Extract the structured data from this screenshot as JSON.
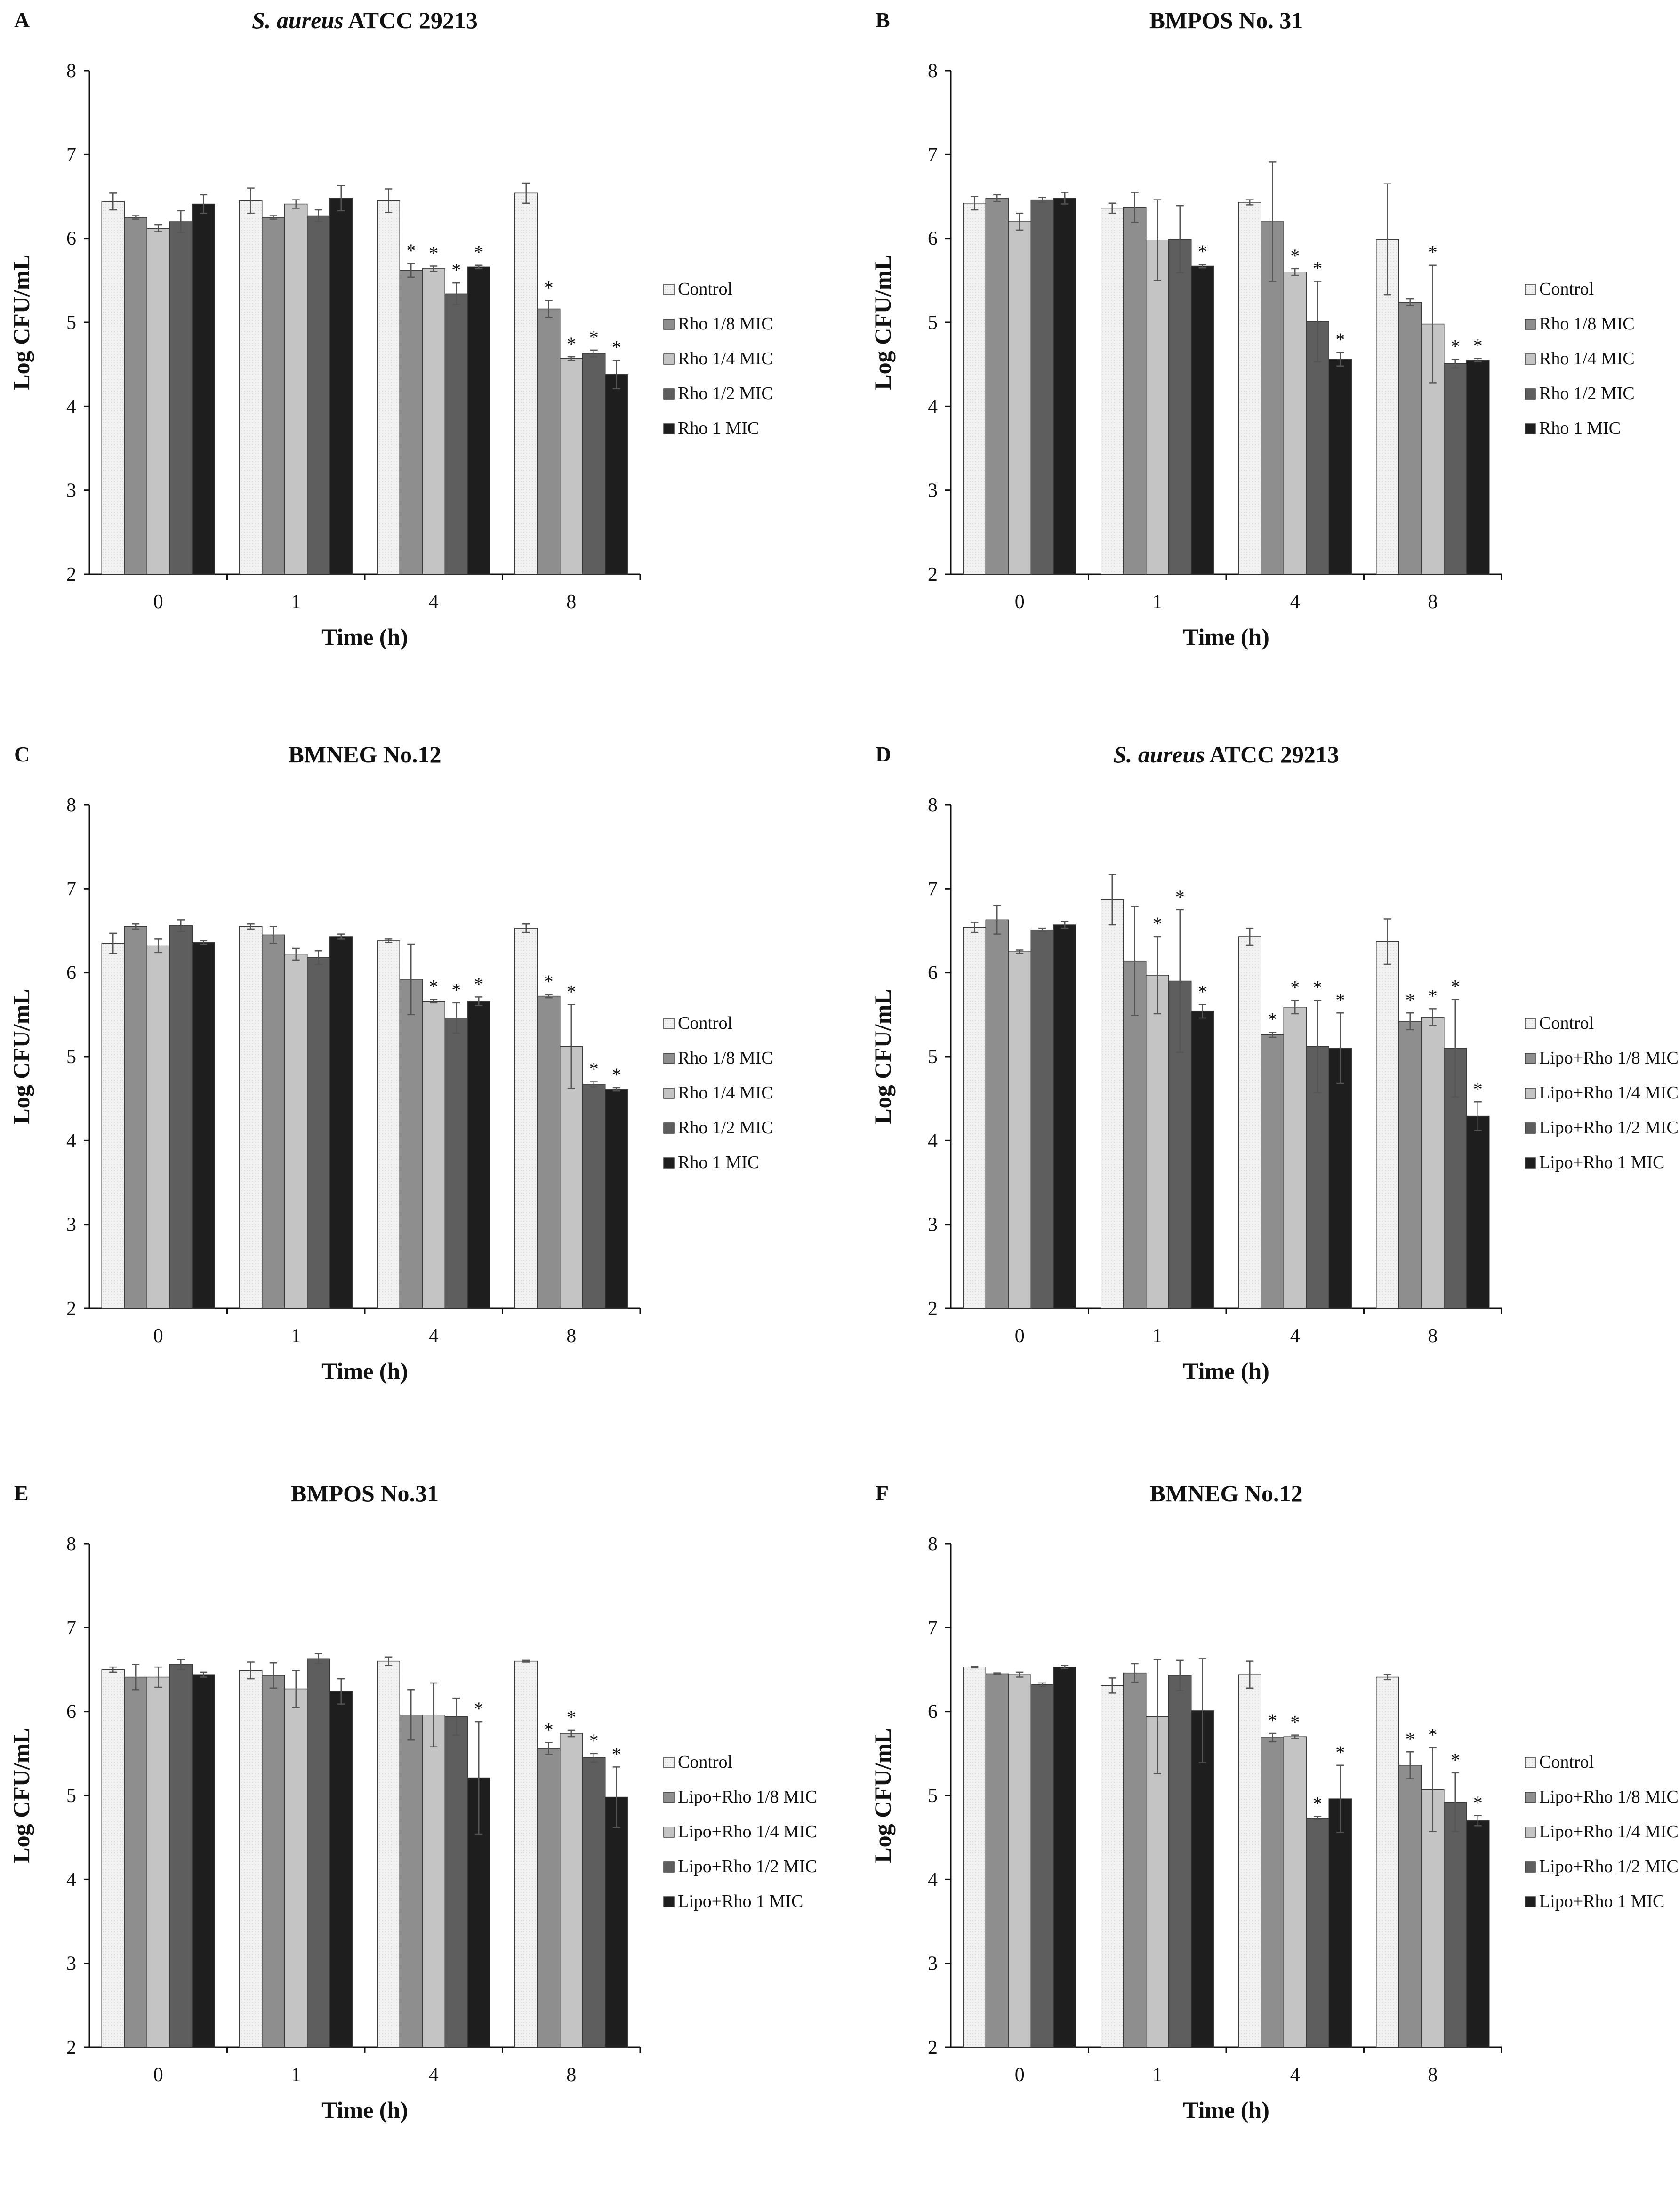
{
  "colors": {
    "control": "#efefef",
    "d18": "#8e8e8e",
    "d14": "#c4c4c4",
    "d12": "#5e5e5e",
    "d1": "#1e1e1e",
    "axis": "#111111",
    "errorbar": "#555555"
  },
  "chart_data": [
    {
      "letter": "A",
      "title_italic": "S. aureus",
      "title_rest": " ATCC 29213",
      "type": "bar",
      "xlabel": "Time (h)",
      "ylabel": "Log CFU/mL",
      "ylim": [
        2,
        8
      ],
      "yticks": [
        "2",
        "3",
        "4",
        "5",
        "6",
        "7",
        "8"
      ],
      "categories": [
        "0",
        "1",
        "4",
        "8"
      ],
      "series": [
        {
          "name": "Control",
          "values": [
            6.44,
            6.45,
            6.45,
            6.54
          ],
          "errors": [
            0.1,
            0.15,
            0.14,
            0.12
          ],
          "stars": [
            false,
            false,
            false,
            false
          ]
        },
        {
          "name": "Rho 1/8 MIC",
          "values": [
            6.25,
            6.25,
            5.62,
            5.16
          ],
          "errors": [
            0.02,
            0.02,
            0.08,
            0.1
          ],
          "stars": [
            false,
            false,
            true,
            true
          ]
        },
        {
          "name": "Rho 1/4 MIC",
          "values": [
            6.12,
            6.41,
            5.64,
            4.57
          ],
          "errors": [
            0.04,
            0.05,
            0.03,
            0.02
          ],
          "stars": [
            false,
            false,
            true,
            true
          ]
        },
        {
          "name": "Rho 1/2 MIC",
          "values": [
            6.2,
            6.27,
            5.34,
            4.63
          ],
          "errors": [
            0.13,
            0.07,
            0.13,
            0.04
          ],
          "stars": [
            false,
            false,
            true,
            true
          ]
        },
        {
          "name": "Rho 1 MIC",
          "values": [
            6.41,
            6.48,
            5.66,
            4.38
          ],
          "errors": [
            0.11,
            0.15,
            0.02,
            0.17
          ],
          "stars": [
            false,
            false,
            true,
            true
          ]
        }
      ]
    },
    {
      "letter": "B",
      "title_italic": "",
      "title_rest": "BMPOS No. 31",
      "type": "bar",
      "xlabel": "Time (h)",
      "ylabel": "Log CFU/mL",
      "ylim": [
        2,
        8
      ],
      "yticks": [
        "2",
        "3",
        "4",
        "5",
        "6",
        "7",
        "8"
      ],
      "categories": [
        "0",
        "1",
        "4",
        "8"
      ],
      "series": [
        {
          "name": "Control",
          "values": [
            6.42,
            6.36,
            6.43,
            5.99
          ],
          "errors": [
            0.08,
            0.06,
            0.03,
            0.66
          ],
          "stars": [
            false,
            false,
            false,
            false
          ]
        },
        {
          "name": "Rho 1/8 MIC",
          "values": [
            6.48,
            6.37,
            6.2,
            5.24
          ],
          "errors": [
            0.04,
            0.18,
            0.71,
            0.04
          ],
          "stars": [
            false,
            false,
            false,
            false
          ]
        },
        {
          "name": "Rho 1/4 MIC",
          "values": [
            6.2,
            5.98,
            5.6,
            4.98
          ],
          "errors": [
            0.1,
            0.48,
            0.04,
            0.7
          ],
          "stars": [
            false,
            false,
            true,
            true
          ]
        },
        {
          "name": "Rho 1/2 MIC",
          "values": [
            6.46,
            5.99,
            5.01,
            4.51
          ],
          "errors": [
            0.03,
            0.4,
            0.48,
            0.05
          ],
          "stars": [
            false,
            false,
            true,
            true
          ]
        },
        {
          "name": "Rho 1 MIC",
          "values": [
            6.48,
            5.67,
            4.56,
            4.55
          ],
          "errors": [
            0.07,
            0.02,
            0.08,
            0.02
          ],
          "stars": [
            false,
            true,
            true,
            true
          ]
        }
      ]
    },
    {
      "letter": "C",
      "title_italic": "",
      "title_rest": "BMNEG No.12",
      "type": "bar",
      "xlabel": "Time (h)",
      "ylabel": "Log CFU/mL",
      "ylim": [
        2,
        8
      ],
      "yticks": [
        "2",
        "3",
        "4",
        "5",
        "6",
        "7",
        "8"
      ],
      "categories": [
        "0",
        "1",
        "4",
        "8"
      ],
      "series": [
        {
          "name": "Control",
          "values": [
            6.35,
            6.55,
            6.38,
            6.53
          ],
          "errors": [
            0.12,
            0.03,
            0.02,
            0.05
          ],
          "stars": [
            false,
            false,
            false,
            false
          ]
        },
        {
          "name": "Rho 1/8 MIC",
          "values": [
            6.55,
            6.45,
            5.92,
            5.72
          ],
          "errors": [
            0.03,
            0.1,
            0.42,
            0.02
          ],
          "stars": [
            false,
            false,
            false,
            true
          ]
        },
        {
          "name": "Rho 1/4 MIC",
          "values": [
            6.32,
            6.22,
            5.66,
            5.12
          ],
          "errors": [
            0.08,
            0.07,
            0.02,
            0.5
          ],
          "stars": [
            false,
            false,
            true,
            true
          ]
        },
        {
          "name": "Rho 1/2 MIC",
          "values": [
            6.56,
            6.18,
            5.46,
            4.67
          ],
          "errors": [
            0.07,
            0.08,
            0.18,
            0.03
          ],
          "stars": [
            false,
            false,
            true,
            true
          ]
        },
        {
          "name": "Rho 1 MIC",
          "values": [
            6.36,
            6.43,
            5.66,
            4.61
          ],
          "errors": [
            0.02,
            0.03,
            0.05,
            0.02
          ],
          "stars": [
            false,
            false,
            true,
            true
          ]
        }
      ]
    },
    {
      "letter": "D",
      "title_italic": "S. aureus",
      "title_rest": " ATCC 29213",
      "type": "bar",
      "xlabel": "Time (h)",
      "ylabel": "Log CFU/mL",
      "ylim": [
        2,
        8
      ],
      "yticks": [
        "2",
        "3",
        "4",
        "5",
        "6",
        "7",
        "8"
      ],
      "categories": [
        "0",
        "1",
        "4",
        "8"
      ],
      "series": [
        {
          "name": "Control",
          "values": [
            6.54,
            6.87,
            6.43,
            6.37
          ],
          "errors": [
            0.06,
            0.3,
            0.1,
            0.27
          ],
          "stars": [
            false,
            false,
            false,
            false
          ]
        },
        {
          "name": "Lipo+Rho 1/8 MIC",
          "values": [
            6.63,
            6.14,
            5.26,
            5.42
          ],
          "errors": [
            0.17,
            0.65,
            0.03,
            0.1
          ],
          "stars": [
            false,
            false,
            true,
            true
          ]
        },
        {
          "name": "Lipo+Rho 1/4 MIC",
          "values": [
            6.25,
            5.97,
            5.59,
            5.47
          ],
          "errors": [
            0.02,
            0.46,
            0.08,
            0.1
          ],
          "stars": [
            false,
            true,
            true,
            true
          ]
        },
        {
          "name": "Lipo+Rho 1/2 MIC",
          "values": [
            6.51,
            5.9,
            5.12,
            5.1
          ],
          "errors": [
            0.02,
            0.85,
            0.55,
            0.58
          ],
          "stars": [
            false,
            true,
            true,
            true
          ]
        },
        {
          "name": "Lipo+Rho 1 MIC",
          "values": [
            6.57,
            5.54,
            5.1,
            4.29
          ],
          "errors": [
            0.04,
            0.08,
            0.42,
            0.17
          ],
          "stars": [
            false,
            true,
            true,
            true
          ]
        }
      ]
    },
    {
      "letter": "E",
      "title_italic": "",
      "title_rest": "BMPOS No.31",
      "type": "bar",
      "xlabel": "Time (h)",
      "ylabel": "Log CFU/mL",
      "ylim": [
        2,
        8
      ],
      "yticks": [
        "2",
        "3",
        "4",
        "5",
        "6",
        "7",
        "8"
      ],
      "categories": [
        "0",
        "1",
        "4",
        "8"
      ],
      "series": [
        {
          "name": "Control",
          "values": [
            6.5,
            6.49,
            6.6,
            6.6
          ],
          "errors": [
            0.03,
            0.1,
            0.05,
            0.01
          ],
          "stars": [
            false,
            false,
            false,
            false
          ]
        },
        {
          "name": "Lipo+Rho 1/8 MIC",
          "values": [
            6.41,
            6.43,
            5.96,
            5.56
          ],
          "errors": [
            0.15,
            0.15,
            0.3,
            0.07
          ],
          "stars": [
            false,
            false,
            false,
            true
          ]
        },
        {
          "name": "Lipo+Rho 1/4 MIC",
          "values": [
            6.41,
            6.27,
            5.96,
            5.74
          ],
          "errors": [
            0.12,
            0.22,
            0.38,
            0.04
          ],
          "stars": [
            false,
            false,
            false,
            true
          ]
        },
        {
          "name": "Lipo+Rho 1/2 MIC",
          "values": [
            6.56,
            6.63,
            5.94,
            5.45
          ],
          "errors": [
            0.06,
            0.06,
            0.22,
            0.05
          ],
          "stars": [
            false,
            false,
            false,
            true
          ]
        },
        {
          "name": "Lipo+Rho 1 MIC",
          "values": [
            6.44,
            6.24,
            5.21,
            4.98
          ],
          "errors": [
            0.03,
            0.15,
            0.67,
            0.36
          ],
          "stars": [
            false,
            false,
            true,
            true
          ]
        }
      ]
    },
    {
      "letter": "F",
      "title_italic": "",
      "title_rest": "BMNEG No.12",
      "type": "bar",
      "xlabel": "Time (h)",
      "ylabel": "Log CFU/mL",
      "ylim": [
        2,
        8
      ],
      "yticks": [
        "2",
        "3",
        "4",
        "5",
        "6",
        "7",
        "8"
      ],
      "categories": [
        "0",
        "1",
        "4",
        "8"
      ],
      "series": [
        {
          "name": "Control",
          "values": [
            6.53,
            6.31,
            6.44,
            6.41
          ],
          "errors": [
            0.01,
            0.09,
            0.16,
            0.03
          ],
          "stars": [
            false,
            false,
            false,
            false
          ]
        },
        {
          "name": "Lipo+Rho 1/8 MIC",
          "values": [
            6.45,
            6.46,
            5.69,
            5.36
          ],
          "errors": [
            0.01,
            0.11,
            0.05,
            0.16
          ],
          "stars": [
            false,
            false,
            true,
            true
          ]
        },
        {
          "name": "Lipo+Rho 1/4 MIC",
          "values": [
            6.44,
            5.94,
            5.7,
            5.07
          ],
          "errors": [
            0.03,
            0.68,
            0.02,
            0.5
          ],
          "stars": [
            false,
            false,
            true,
            true
          ]
        },
        {
          "name": "Lipo+Rho 1/2 MIC",
          "values": [
            6.32,
            6.43,
            4.73,
            4.92
          ],
          "errors": [
            0.02,
            0.18,
            0.02,
            0.35
          ],
          "stars": [
            false,
            false,
            true,
            true
          ]
        },
        {
          "name": "Lipo+Rho 1 MIC",
          "values": [
            6.53,
            6.01,
            4.96,
            4.7
          ],
          "errors": [
            0.02,
            0.62,
            0.4,
            0.06
          ],
          "stars": [
            false,
            false,
            true,
            true
          ]
        }
      ]
    }
  ]
}
